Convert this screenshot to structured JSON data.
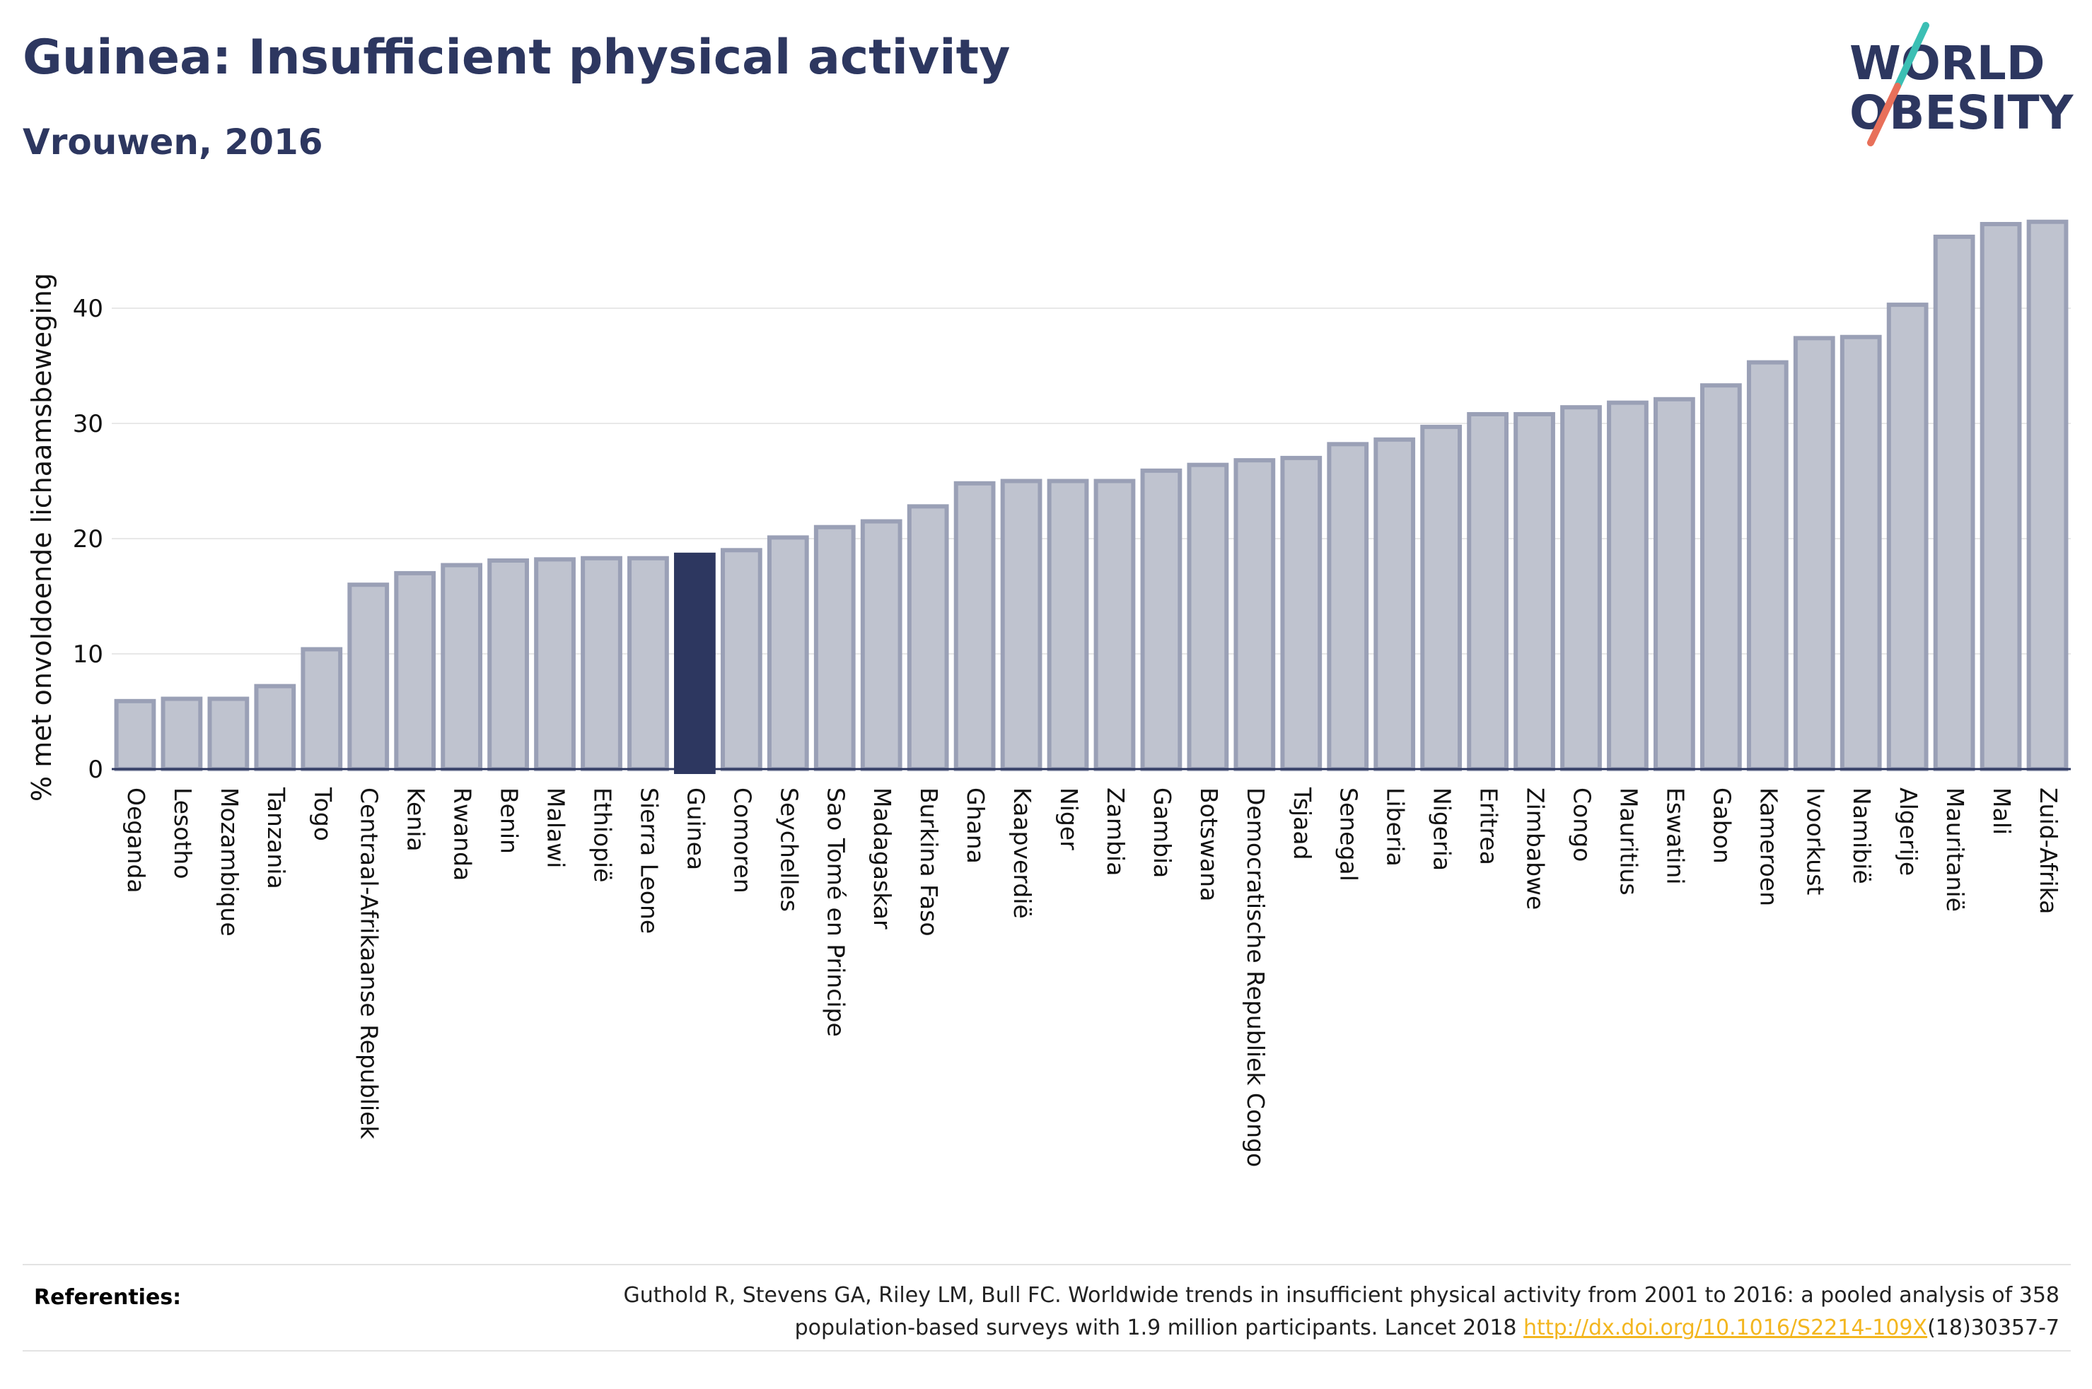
{
  "header": {
    "title": "Guinea: Insufficient physical activity",
    "subtitle": "Vrouwen, 2016"
  },
  "logo": {
    "line1": "WORLD",
    "line2": "OBESITY",
    "text_color": "#2d3760",
    "slash_colors": [
      "#3bbfb4",
      "#e8705a"
    ]
  },
  "chart_data": {
    "type": "bar",
    "title": "Guinea: Insufficient physical activity",
    "subtitle": "Vrouwen, 2016",
    "xlabel": "",
    "ylabel": "% met onvoldoende lichaamsbeweging",
    "ylim": [
      0,
      50
    ],
    "yticks": [
      0,
      10,
      20,
      30,
      40
    ],
    "grid": true,
    "highlight": "Guinea",
    "colors": {
      "bar_fill": "#bfc3cf",
      "bar_stroke": "#9aa0b6",
      "highlight": "#2d3760",
      "axis": "#2d3760",
      "grid": "#e8e8e8"
    },
    "categories": [
      "Oeganda",
      "Lesotho",
      "Mozambique",
      "Tanzania",
      "Togo",
      "Centraal-Afrikaanse Republiek",
      "Kenia",
      "Rwanda",
      "Benin",
      "Malawi",
      "Ethiopië",
      "Sierra Leone",
      "Guinea",
      "Comoren",
      "Seychelles",
      "Sao Tomé en Principe",
      "Madagaskar",
      "Burkina Faso",
      "Ghana",
      "Kaapverdië",
      "Niger",
      "Zambia",
      "Gambia",
      "Botswana",
      "Democratische Republiek Congo",
      "Tsjaad",
      "Senegal",
      "Liberia",
      "Nigeria",
      "Eritrea",
      "Zimbabwe",
      "Congo",
      "Mauritius",
      "Eswatini",
      "Gabon",
      "Kameroen",
      "Ivoorkust",
      "Namibië",
      "Algerije",
      "Mauritanië",
      "Mali",
      "Zuid-Afrika"
    ],
    "values": [
      5.9,
      6.1,
      6.1,
      7.2,
      10.4,
      16.0,
      17.0,
      17.7,
      18.1,
      18.2,
      18.3,
      18.3,
      18.6,
      19.0,
      20.1,
      21.0,
      21.5,
      22.8,
      24.8,
      25.0,
      25.0,
      25.0,
      25.9,
      26.4,
      26.8,
      27.0,
      28.2,
      28.6,
      29.7,
      30.8,
      30.8,
      31.4,
      31.8,
      32.1,
      33.3,
      35.3,
      37.4,
      37.5,
      40.3,
      46.2,
      47.3,
      47.5
    ]
  },
  "references": {
    "label": "Referenties:",
    "text_before": "Guthold R, Stevens GA, Riley LM, Bull FC. Worldwide trends in insufficient physical activity from 2001 to 2016: a pooled analysis of 358 population-based surveys with 1.9 million participants. Lancet 2018 ",
    "link_text": "http://dx.doi.org/10.1016/S2214-109X",
    "text_after": "(18)30357-7"
  }
}
